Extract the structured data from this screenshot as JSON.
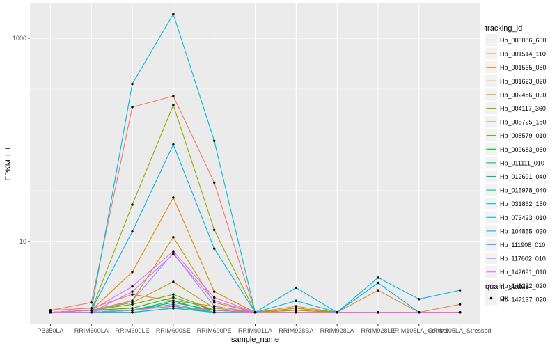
{
  "chart_data": {
    "type": "line",
    "xlabel": "sample_name",
    "ylabel": "FPKM + 1",
    "y_scale": "log10",
    "ylim": [
      1.55,
      2200
    ],
    "y_ticks": [
      10,
      1000
    ],
    "y_tick_labels": [
      "10",
      "1000"
    ],
    "grid": true,
    "legend_position": "right",
    "categories": [
      "PB350LA",
      "RRIM600LA",
      "RRIM600LE",
      "RRIM600SE",
      "RRIM600PE",
      "RRIM901LA",
      "RRIM928BA",
      "RRIM928LA",
      "RRIM928LE",
      "RRIM105LA_Control",
      "RRIM105LA_Stressed"
    ],
    "legend_title": "tracking_id",
    "series": [
      {
        "name": "Hb_000086_600",
        "color": "#F8766D",
        "values": [
          2.1,
          2.5,
          210,
          270,
          38,
          2.0,
          2.0,
          2.0,
          2.0,
          2.0,
          2.0
        ]
      },
      {
        "name": "Hb_001514_110",
        "color": "#F17D51",
        "values": [
          2.1,
          2.2,
          3.0,
          2.6,
          2.3,
          2.0,
          2.3,
          2.0,
          3.3,
          2.0,
          2.4
        ]
      },
      {
        "name": "Hb_001565_050",
        "color": "#E38900",
        "values": [
          2.0,
          2.1,
          5.0,
          27,
          3.2,
          2.0,
          2.2,
          2.0,
          2.0,
          2.0,
          2.0
        ]
      },
      {
        "name": "Hb_001623_020",
        "color": "#CF9400",
        "values": [
          2.0,
          2.1,
          2.6,
          11,
          2.5,
          2.0,
          2.1,
          2.0,
          2.0,
          2.0,
          2.0
        ]
      },
      {
        "name": "Hb_002486_030",
        "color": "#B79F00",
        "values": [
          2.0,
          2.1,
          2.5,
          4.0,
          2.2,
          2.0,
          2.1,
          2.0,
          2.0,
          2.0,
          2.0
        ]
      },
      {
        "name": "Hb_004117_360",
        "color": "#9AA800",
        "values": [
          2.0,
          2.1,
          23,
          220,
          13,
          2.0,
          2.2,
          2.0,
          2.0,
          2.0,
          2.0
        ]
      },
      {
        "name": "Hb_005725_180",
        "color": "#75AF00",
        "values": [
          2.0,
          2.1,
          2.4,
          3.0,
          2.1,
          2.0,
          2.0,
          2.0,
          2.0,
          2.0,
          2.0
        ]
      },
      {
        "name": "Hb_008579_010",
        "color": "#3CB600",
        "values": [
          2.0,
          2.1,
          2.2,
          2.8,
          2.1,
          2.0,
          2.0,
          2.0,
          2.0,
          2.0,
          2.0
        ]
      },
      {
        "name": "Hb_009683_060",
        "color": "#00BA38",
        "values": [
          2.0,
          2.0,
          2.1,
          2.5,
          2.1,
          2.0,
          2.0,
          2.0,
          2.0,
          2.0,
          2.0
        ]
      },
      {
        "name": "Hb_011111_010",
        "color": "#00BD5F",
        "values": [
          2.0,
          2.0,
          2.1,
          2.3,
          2.0,
          2.0,
          2.0,
          2.0,
          2.0,
          2.0,
          2.0
        ]
      },
      {
        "name": "Hb_012691_040",
        "color": "#00BF7D",
        "values": [
          2.0,
          2.0,
          2.0,
          2.2,
          2.0,
          2.0,
          2.0,
          2.0,
          2.0,
          2.0,
          2.0
        ]
      },
      {
        "name": "Hb_015978_040",
        "color": "#00C19A",
        "values": [
          2.0,
          2.0,
          2.1,
          2.6,
          2.0,
          2.0,
          2.0,
          2.0,
          2.0,
          2.0,
          2.0
        ]
      },
      {
        "name": "Hb_031862_150",
        "color": "#00C0B8",
        "values": [
          2.0,
          2.0,
          2.0,
          2.2,
          2.0,
          2.0,
          2.0,
          2.0,
          2.0,
          2.0,
          2.0
        ]
      },
      {
        "name": "Hb_073423_010",
        "color": "#00BCD6",
        "values": [
          2.0,
          2.1,
          355,
          1730,
          98,
          2.0,
          2.6,
          2.0,
          3.9,
          2.0,
          2.0
        ]
      },
      {
        "name": "Hb_104855_020",
        "color": "#00B5EE",
        "values": [
          2.0,
          2.1,
          12.5,
          90,
          8.5,
          2.0,
          3.5,
          2.0,
          4.4,
          2.7,
          3.3
        ]
      },
      {
        "name": "Hb_111908_010",
        "color": "#619CFF",
        "values": [
          2.0,
          2.0,
          2.1,
          2.4,
          2.0,
          2.0,
          2.0,
          2.0,
          2.0,
          2.0,
          2.0
        ]
      },
      {
        "name": "Hb_117602_010",
        "color": "#9E8AFF",
        "values": [
          2.0,
          2.0,
          2.6,
          7.7,
          2.3,
          2.0,
          2.0,
          2.0,
          2.0,
          2.0,
          2.0
        ]
      },
      {
        "name": "Hb_142691_010",
        "color": "#C77CFF",
        "values": [
          2.0,
          2.0,
          3.2,
          7.5,
          2.6,
          2.0,
          2.0,
          2.0,
          2.0,
          2.0,
          2.0
        ]
      },
      {
        "name": "Hb_143232_020",
        "color": "#E76BF3",
        "values": [
          2.0,
          2.1,
          3.6,
          8.0,
          2.8,
          2.0,
          2.0,
          2.0,
          2.0,
          2.0,
          2.0
        ]
      },
      {
        "name": "Hb_147137_020",
        "color": "#FF61C3",
        "values": [
          2.0,
          2.1,
          2.1,
          2.3,
          2.1,
          2.0,
          2.0,
          2.0,
          2.0,
          2.0,
          2.0
        ]
      }
    ],
    "point_legend_title": "quant_status",
    "point_legend_label": "OK",
    "colors": {
      "panel": "#EBEBEB",
      "grid_major": "#FFFFFF",
      "point": "#000000"
    }
  }
}
